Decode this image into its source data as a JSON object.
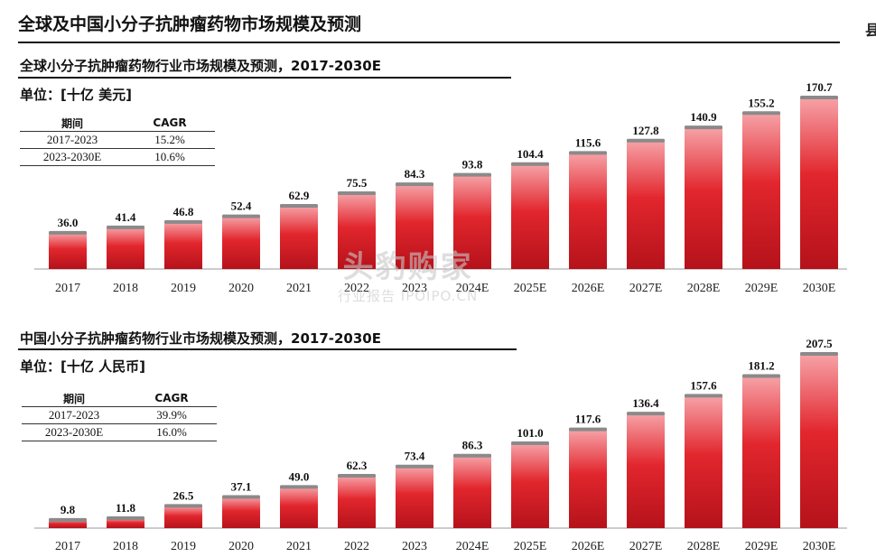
{
  "page_title": "全球及中国小分子抗肿瘤药物市场规模及预测",
  "right_edge_glyph": "县",
  "watermark": {
    "main": "头豹购家",
    "sub": "行业报告 IPOIPO.CN"
  },
  "colors": {
    "bar_top": "#f6a3a8",
    "bar_mid": "#e2262d",
    "bar_bottom": "#b5121b",
    "cap": "#8a8a8a",
    "axis": "#999999"
  },
  "chart_data": [
    {
      "type": "bar",
      "title": "全球小分子抗肿瘤药物行业市场规模及预测，2017-2030E",
      "unit": "单位：[十亿 美元]",
      "cagr_table": {
        "headers": [
          "期间",
          "CAGR"
        ],
        "rows": [
          [
            "2017-2023",
            "15.2%"
          ],
          [
            "2023-2030E",
            "10.6%"
          ]
        ]
      },
      "categories": [
        "2017",
        "2018",
        "2019",
        "2020",
        "2021",
        "2022",
        "2023",
        "2024E",
        "2025E",
        "2026E",
        "2027E",
        "2028E",
        "2029E",
        "2030E"
      ],
      "values": [
        36.0,
        41.4,
        46.8,
        52.4,
        62.9,
        75.5,
        84.3,
        93.8,
        104.4,
        115.6,
        127.8,
        140.9,
        155.2,
        170.7
      ],
      "labels": [
        "36.0",
        "41.4",
        "46.8",
        "52.4",
        "62.9",
        "75.5",
        "84.3",
        "93.8",
        "104.4",
        "115.6",
        "127.8",
        "140.9",
        "155.2",
        "170.7"
      ],
      "ylim": [
        0,
        170.7
      ]
    },
    {
      "type": "bar",
      "title": "中国小分子抗肿瘤药物行业市场规模及预测，2017-2030E",
      "unit": "单位：[十亿 人民币]",
      "cagr_table": {
        "headers": [
          "期间",
          "CAGR"
        ],
        "rows": [
          [
            "2017-2023",
            "39.9%"
          ],
          [
            "2023-2030E",
            "16.0%"
          ]
        ]
      },
      "categories": [
        "2017",
        "2018",
        "2019",
        "2020",
        "2021",
        "2022",
        "2023",
        "2024E",
        "2025E",
        "2026E",
        "2027E",
        "2028E",
        "2029E",
        "2030E"
      ],
      "values": [
        9.8,
        11.8,
        26.5,
        37.1,
        49.0,
        62.3,
        73.4,
        86.3,
        101.0,
        117.6,
        136.4,
        157.6,
        181.2,
        207.5
      ],
      "labels": [
        "9.8",
        "11.8",
        "26.5",
        "37.1",
        "49.0",
        "62.3",
        "73.4",
        "86.3",
        "101.0",
        "117.6",
        "136.4",
        "157.6",
        "181.2",
        "207.5"
      ],
      "ylim": [
        0,
        207.5
      ]
    }
  ]
}
